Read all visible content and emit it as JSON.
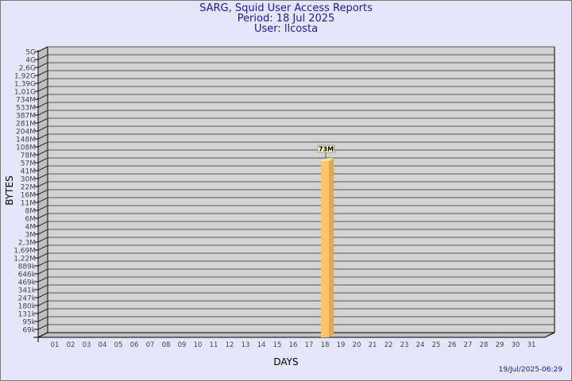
{
  "header": {
    "title": "SARG, Squid User Access Reports",
    "period": "Period: 18 Jul 2025",
    "user": "User: llcosta"
  },
  "footer": {
    "timestamp": "19/Jul/2025-06:29"
  },
  "chart_data": {
    "type": "bar",
    "title": "SARG, Squid User Access Reports",
    "xlabel": "DAYS",
    "ylabel": "BYTES",
    "y_scale": "log",
    "grid": true,
    "y_ticks": [
      "5G",
      "4G",
      "2,6G",
      "1,92G",
      "1,39G",
      "1,01G",
      "734M",
      "533M",
      "387M",
      "281M",
      "204M",
      "148M",
      "108M",
      "78M",
      "57M",
      "41M",
      "30M",
      "22M",
      "16M",
      "11M",
      "8M",
      "6M",
      "4M",
      "3M",
      "2,3M",
      "1,69M",
      "1,22M",
      "889k",
      "646k",
      "469k",
      "341k",
      "247k",
      "180k",
      "131k",
      "95k",
      "69k"
    ],
    "categories": [
      "01",
      "02",
      "03",
      "04",
      "05",
      "06",
      "07",
      "08",
      "09",
      "10",
      "11",
      "12",
      "13",
      "14",
      "15",
      "16",
      "17",
      "18",
      "19",
      "20",
      "21",
      "22",
      "23",
      "24",
      "25",
      "26",
      "27",
      "28",
      "29",
      "30",
      "31"
    ],
    "bars": [
      {
        "day": "18",
        "value": "73M"
      }
    ],
    "colors": {
      "bar": "#ffc766",
      "bar_side": "#e0a850",
      "bar_top": "#ffe090",
      "wall": "#d3d3d3",
      "label_bg": "#ffffc0"
    }
  }
}
